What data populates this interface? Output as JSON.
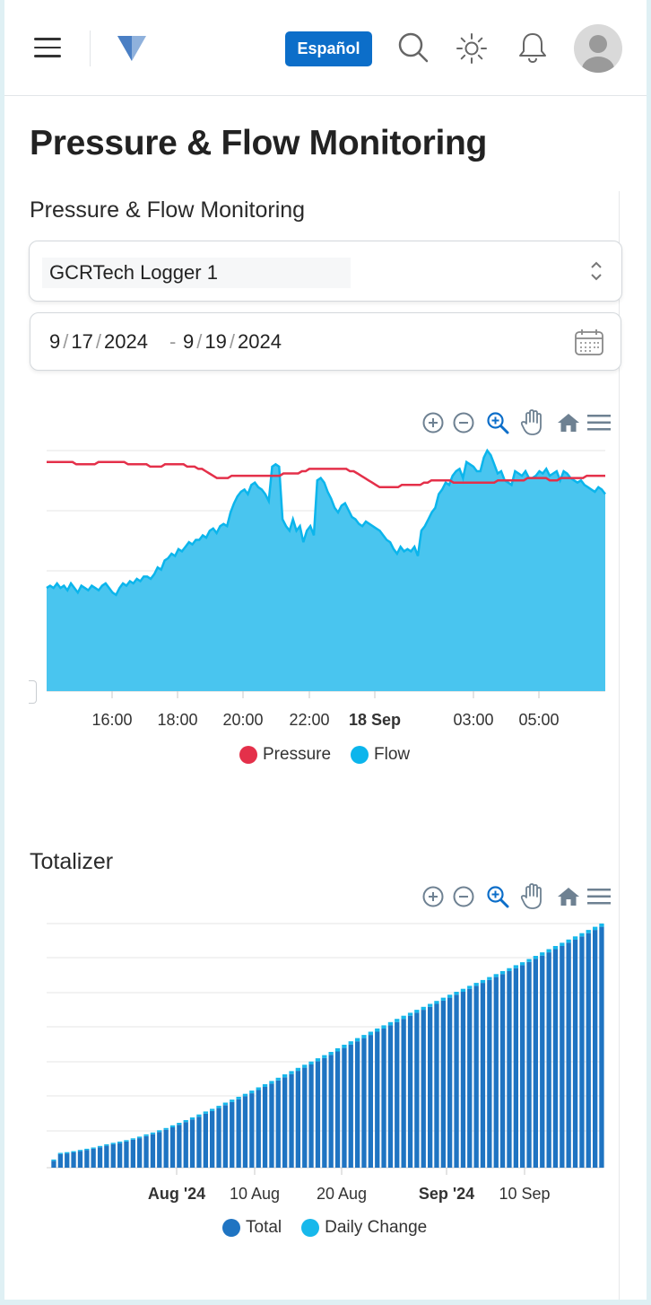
{
  "header": {
    "language_label": "Español"
  },
  "page": {
    "title": "Pressure & Flow Monitoring"
  },
  "monitoring": {
    "section_title": "Pressure & Flow Monitoring",
    "logger_select": {
      "value": "GCRTech Logger 1"
    },
    "date_range": {
      "start": {
        "month": "9",
        "day": "17",
        "year": "2024"
      },
      "end": {
        "month": "9",
        "day": "19",
        "year": "2024"
      },
      "separator": "/",
      "range_dash": "-"
    }
  },
  "totalizer": {
    "section_title": "Totalizer"
  },
  "toolbar_icons": [
    "zoom-in-icon",
    "zoom-out-icon",
    "selection-zoom-icon",
    "pan-hand-icon",
    "reset-home-icon",
    "menu-icon"
  ],
  "colors": {
    "accent": "#0c6ec9",
    "pressure": "#e4304a",
    "flow": "#0bb5ec",
    "total": "#1f74c2",
    "daily_change": "#17b8eb"
  },
  "chart_data": [
    {
      "type": "area",
      "title": "",
      "xlabel": "",
      "ylabel": "",
      "x_tick_labels": [
        "16:00",
        "18:00",
        "20:00",
        "22:00",
        "18 Sep",
        "03:00",
        "05:00"
      ],
      "legend": "bottom-center",
      "grid": true,
      "y_axis_labels_shown": false,
      "series": [
        {
          "name": "Pressure",
          "type": "line",
          "values": [
            100,
            100,
            100,
            100,
            100,
            100,
            100,
            100,
            99,
            99,
            99,
            99,
            99,
            99,
            100,
            100,
            100,
            100,
            100,
            100,
            100,
            100,
            99,
            99,
            99,
            99,
            99,
            99,
            98,
            98,
            98,
            98,
            99,
            99,
            99,
            99,
            99,
            99,
            98,
            98,
            98,
            97,
            97,
            96,
            95,
            94,
            93,
            93,
            93,
            93,
            94,
            94,
            94,
            94,
            94,
            94,
            94,
            94,
            94,
            94,
            94,
            94,
            94,
            94,
            95,
            95,
            95,
            95,
            95,
            96,
            96,
            97,
            97,
            97,
            97,
            97,
            97,
            97,
            97,
            97,
            97,
            97,
            96,
            96,
            95,
            94,
            93,
            92,
            91,
            90,
            89,
            89,
            89,
            89,
            89,
            89,
            90,
            90,
            90,
            90,
            90,
            90,
            91,
            91,
            92,
            92,
            92,
            92,
            92,
            92,
            91,
            91,
            91,
            91,
            91,
            91,
            91,
            91,
            91,
            91,
            91,
            91,
            92,
            92,
            92,
            92,
            92,
            92,
            92,
            92,
            93,
            93,
            93,
            93,
            93,
            93,
            92,
            92,
            92,
            93,
            93,
            93,
            93,
            93,
            93,
            93,
            94,
            94,
            94,
            94,
            94,
            94
          ]
        },
        {
          "name": "Flow",
          "type": "area",
          "values": [
            45,
            46,
            45,
            47,
            45,
            46,
            44,
            47,
            45,
            43,
            46,
            45,
            44,
            46,
            45,
            44,
            46,
            47,
            45,
            43,
            42,
            45,
            47,
            46,
            48,
            47,
            49,
            48,
            50,
            50,
            49,
            51,
            54,
            53,
            57,
            58,
            60,
            59,
            62,
            61,
            63,
            65,
            64,
            66,
            66,
            68,
            67,
            70,
            71,
            69,
            72,
            73,
            72,
            78,
            82,
            85,
            87,
            88,
            86,
            90,
            91,
            89,
            88,
            86,
            83,
            98,
            99,
            98,
            75,
            72,
            70,
            75,
            70,
            72,
            65,
            70,
            72,
            68,
            92,
            93,
            91,
            87,
            84,
            80,
            78,
            81,
            82,
            79,
            76,
            75,
            73,
            72,
            74,
            73,
            72,
            71,
            70,
            68,
            66,
            65,
            62,
            60,
            63,
            61,
            62,
            61,
            63,
            59,
            70,
            72,
            75,
            78,
            80,
            86,
            88,
            91,
            90,
            94,
            96,
            97,
            93,
            100,
            99,
            98,
            96,
            96,
            102,
            105,
            103,
            99,
            95,
            96,
            92,
            91,
            90,
            96,
            95,
            94,
            96,
            93,
            93,
            94,
            96,
            95,
            97,
            94,
            95,
            96,
            92,
            96,
            95,
            93,
            92,
            91,
            92,
            90,
            89,
            88,
            87,
            89,
            88,
            86
          ]
        }
      ]
    },
    {
      "type": "bar",
      "title": "",
      "xlabel": "",
      "ylabel": "",
      "x_tick_labels": [
        "Aug '24",
        "10 Aug",
        "20 Aug",
        "Sep '24",
        "10 Sep"
      ],
      "legend": "bottom-center",
      "grid": true,
      "stacked": true,
      "y_axis_labels_shown": false,
      "series": [
        {
          "name": "Total",
          "values": [
            2.8,
            5.5,
            5.8,
            6.2,
            6.7,
            7.2,
            7.7,
            8.3,
            8.9,
            9.5,
            10.0,
            10.6,
            11.3,
            12.0,
            12.8,
            13.6,
            14.5,
            15.4,
            16.4,
            17.4,
            18.5,
            19.6,
            20.7,
            21.9,
            23.0,
            24.2,
            25.4,
            26.6,
            27.8,
            29.0,
            30.2,
            31.5,
            32.8,
            34.1,
            35.4,
            36.7,
            38.0,
            39.3,
            40.6,
            41.9,
            43.2,
            44.5,
            45.8,
            47.2,
            48.6,
            50.0,
            51.3,
            52.6,
            53.9,
            55.2,
            56.5,
            57.8,
            59.1,
            60.4,
            61.7,
            62.9,
            64.1,
            65.3,
            66.5,
            67.8,
            69.0,
            70.2,
            71.4,
            72.6,
            73.8,
            75.0,
            76.2,
            77.4,
            78.6,
            79.8,
            81.0,
            82.2,
            83.5,
            84.8,
            86.1,
            87.4,
            88.7,
            90.0,
            91.3,
            92.6,
            93.9,
            95.2,
            96.5,
            97.8
          ]
        },
        {
          "name": "Daily Change",
          "values": [
            0.5,
            0.5,
            0.5,
            0.5,
            0.5,
            0.5,
            0.5,
            0.5,
            0.6,
            0.6,
            0.6,
            0.6,
            0.6,
            0.6,
            0.7,
            0.7,
            0.7,
            0.7,
            0.8,
            0.8,
            0.8,
            0.8,
            0.9,
            0.9,
            0.9,
            0.9,
            1.0,
            1.0,
            1.0,
            1.0,
            1.1,
            1.1,
            1.1,
            1.1,
            1.1,
            1.2,
            1.2,
            1.2,
            1.2,
            1.2,
            1.2,
            1.2,
            1.2,
            1.3,
            1.3,
            1.3,
            1.3,
            1.3,
            1.3,
            1.3,
            1.3,
            1.3,
            1.3,
            1.3,
            1.2,
            1.2,
            1.2,
            1.2,
            1.2,
            1.2,
            1.2,
            1.2,
            1.2,
            1.2,
            1.2,
            1.2,
            1.2,
            1.2,
            1.2,
            1.2,
            1.2,
            1.2,
            1.2,
            1.2,
            1.3,
            1.3,
            1.3,
            1.3,
            1.3,
            1.3,
            1.3,
            1.3,
            1.3,
            1.3
          ]
        }
      ]
    }
  ]
}
